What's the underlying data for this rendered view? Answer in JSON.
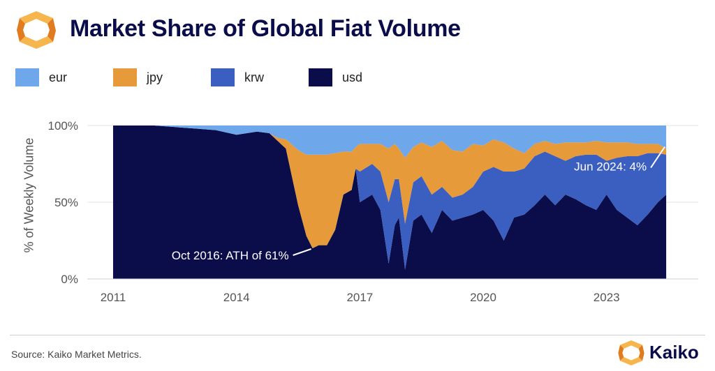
{
  "header": {
    "title": "Market Share of Global Fiat Volume"
  },
  "footer": {
    "source": "Source: Kaiko Market Metrics.",
    "brand": "Kaiko"
  },
  "colors": {
    "eur": "#6fa8ea",
    "jpy": "#e69a3a",
    "krw": "#3b5fc0",
    "usd": "#0b0d4a",
    "logo_light": "#f6b64d",
    "logo_dark": "#e07c1f"
  },
  "chart_data": {
    "type": "area",
    "stacked": true,
    "normalized": true,
    "title": "Market Share of Global Fiat Volume",
    "xlabel": "",
    "ylabel": "% of Weekly Volume",
    "xlim": [
      2011,
      2024.55
    ],
    "ylim": [
      0,
      100
    ],
    "y_ticks": [
      0,
      50,
      100
    ],
    "y_tick_labels": [
      "0%",
      "50%",
      "100%"
    ],
    "x_ticks": [
      2011,
      2014,
      2017,
      2020,
      2023
    ],
    "x_tick_labels": [
      "2011",
      "2014",
      "2017",
      "2020",
      "2023"
    ],
    "grid": true,
    "legend_position": "top-left",
    "legend": [
      "eur",
      "jpy",
      "krw",
      "usd"
    ],
    "series_order_bottom_to_top": [
      "usd",
      "krw",
      "jpy",
      "eur"
    ],
    "x": [
      2011.0,
      2012.0,
      2013.0,
      2013.5,
      2014.0,
      2014.5,
      2014.8,
      2015.0,
      2015.2,
      2015.5,
      2015.7,
      2015.85,
      2016.0,
      2016.2,
      2016.4,
      2016.6,
      2016.8,
      2016.9,
      2017.0,
      2017.3,
      2017.5,
      2017.7,
      2017.85,
      2017.95,
      2018.1,
      2018.3,
      2018.5,
      2018.75,
      2019.0,
      2019.25,
      2019.5,
      2019.75,
      2020.0,
      2020.25,
      2020.5,
      2020.75,
      2021.0,
      2021.25,
      2021.5,
      2021.75,
      2022.0,
      2022.25,
      2022.5,
      2022.75,
      2023.0,
      2023.25,
      2023.5,
      2023.75,
      2024.0,
      2024.25,
      2024.45
    ],
    "series": [
      {
        "name": "usd",
        "values": [
          100,
          100,
          98,
          97,
          94,
          96,
          95,
          90,
          85,
          48,
          28,
          20,
          22,
          22,
          32,
          55,
          58,
          72,
          50,
          55,
          45,
          10,
          35,
          40,
          6,
          38,
          42,
          30,
          45,
          38,
          40,
          42,
          45,
          38,
          25,
          40,
          42,
          48,
          55,
          48,
          55,
          52,
          48,
          45,
          55,
          45,
          40,
          35,
          42,
          50,
          55
        ]
      },
      {
        "name": "krw",
        "values": [
          0,
          0,
          0,
          0,
          0,
          0,
          0,
          0,
          0,
          0,
          0,
          0,
          0,
          0,
          0,
          0,
          0,
          0,
          20,
          20,
          25,
          40,
          30,
          25,
          30,
          25,
          25,
          25,
          15,
          15,
          15,
          18,
          25,
          35,
          45,
          30,
          30,
          32,
          28,
          32,
          22,
          28,
          33,
          36,
          22,
          34,
          40,
          45,
          40,
          32,
          26
        ]
      },
      {
        "name": "jpy",
        "values": [
          0,
          0,
          0,
          0,
          0,
          0,
          0,
          2,
          6,
          36,
          53,
          61,
          59,
          59,
          50,
          28,
          25,
          14,
          18,
          13,
          18,
          35,
          23,
          20,
          43,
          23,
          22,
          31,
          30,
          31,
          28,
          28,
          17,
          18,
          19,
          15,
          10,
          8,
          7,
          8,
          12,
          9,
          8,
          9,
          12,
          10,
          9,
          8,
          6,
          6,
          4
        ]
      },
      {
        "name": "eur",
        "values": [
          0,
          0,
          2,
          3,
          6,
          4,
          5,
          8,
          9,
          16,
          19,
          19,
          19,
          19,
          18,
          17,
          17,
          14,
          12,
          12,
          12,
          15,
          12,
          15,
          21,
          14,
          11,
          14,
          10,
          16,
          17,
          12,
          13,
          9,
          11,
          15,
          18,
          12,
          10,
          12,
          11,
          11,
          11,
          10,
          11,
          11,
          11,
          12,
          12,
          12,
          15
        ]
      }
    ],
    "annotations": [
      {
        "text": "Oct 2016: ATH of 61%",
        "x": 2015.85,
        "y": 20
      },
      {
        "text": "Jun 2024: 4%",
        "x": 2024.45,
        "y": 88
      }
    ]
  }
}
